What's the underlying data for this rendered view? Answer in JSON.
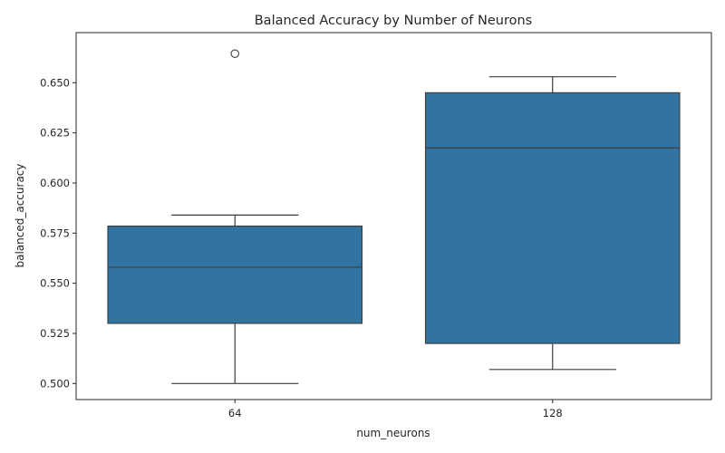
{
  "chart_data": {
    "type": "box",
    "title": "Balanced Accuracy by Number of Neurons",
    "xlabel": "num_neurons",
    "ylabel": "balanced_accuracy",
    "categories": [
      "64",
      "128"
    ],
    "boxes": [
      {
        "category": "64",
        "whisker_low": 0.5,
        "q1": 0.53,
        "median": 0.558,
        "q3": 0.5785,
        "whisker_high": 0.584,
        "outliers": [
          0.6645
        ]
      },
      {
        "category": "128",
        "whisker_low": 0.507,
        "q1": 0.52,
        "median": 0.6175,
        "q3": 0.645,
        "whisker_high": 0.653,
        "outliers": []
      }
    ],
    "yticks": [
      "0.500",
      "0.525",
      "0.550",
      "0.575",
      "0.600",
      "0.625",
      "0.650"
    ],
    "ylim": [
      0.492,
      0.675
    ],
    "grid": false,
    "colors": {
      "box_fill": "#3274a1",
      "line": "#3d3d3d",
      "axis": "#262626"
    }
  }
}
